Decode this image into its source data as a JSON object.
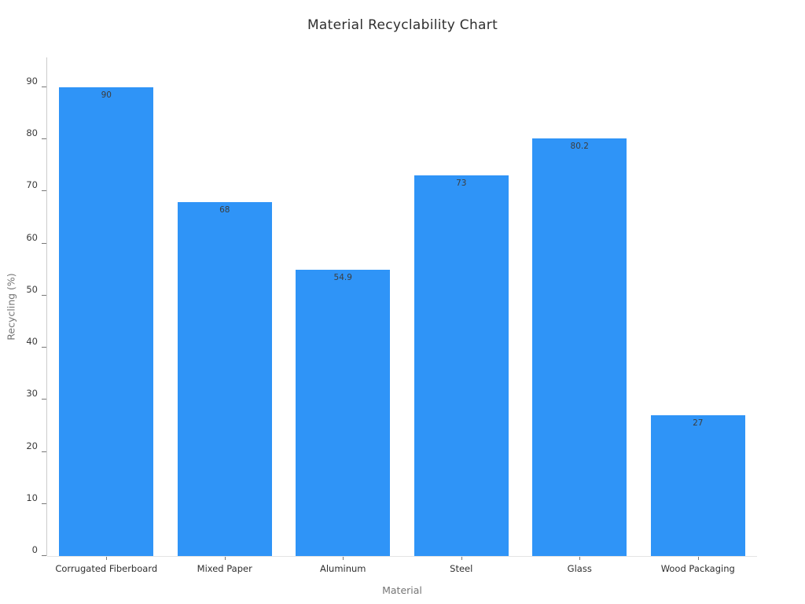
{
  "page": {
    "background": "#ffffff"
  },
  "chart_data": {
    "type": "bar",
    "title": "Material Recyclability Chart",
    "xlabel": "Material",
    "ylabel": "Recycling (%)",
    "categories": [
      "Corrugated Fiberboard",
      "Mixed Paper",
      "Aluminum",
      "Steel",
      "Glass",
      "Wood Packaging"
    ],
    "values": [
      90,
      68,
      54.9,
      73,
      80.2,
      27
    ],
    "value_labels": [
      "90",
      "68",
      "54.9",
      "73",
      "80.2",
      "27"
    ],
    "yticks": [
      0,
      10,
      20,
      30,
      40,
      50,
      60,
      70,
      80,
      90
    ],
    "ylim": [
      0,
      95.7
    ],
    "grid": false,
    "legend": "none",
    "bar_color": "#2F94F7",
    "bar_value_label_color": "#3d3d3d",
    "tick_label_color": "#3b3b3b",
    "axis_title_color": "#757575",
    "title_color": "#2f2f2f"
  }
}
